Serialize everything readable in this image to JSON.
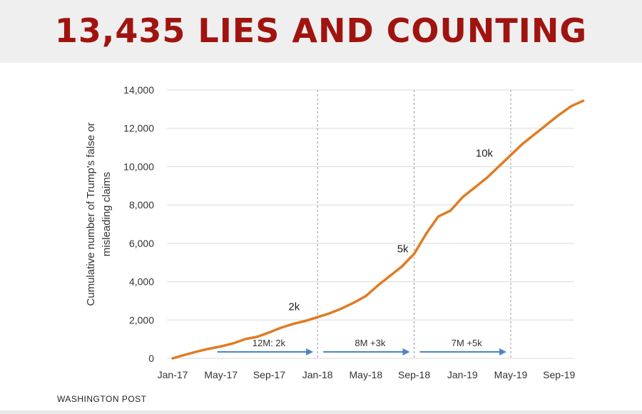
{
  "headline": "13,435 LIES AND COUNTING",
  "source": "WASHINGTON POST",
  "colors": {
    "headline": "#a0140f",
    "line": "#e07b24",
    "arrow": "#4a86c5",
    "grid": "#d9d9d9"
  },
  "chart_data": {
    "type": "line",
    "title": "",
    "ylabel": "Cumulative number of Trump's false or misleading claims",
    "ylabel_lines": [
      "Cumulative number of Trump's false or",
      "misleading claims"
    ],
    "ylim": [
      0,
      14000
    ],
    "yticks": [
      0,
      2000,
      4000,
      6000,
      8000,
      10000,
      12000,
      14000
    ],
    "ytick_labels": [
      "0",
      "2,000",
      "4,000",
      "6,000",
      "8,000",
      "10,000",
      "12,000",
      "14,000"
    ],
    "xlim": [
      "2017-01",
      "2019-12"
    ],
    "xticks": [
      "2017-01",
      "2017-05",
      "2017-09",
      "2018-01",
      "2018-05",
      "2018-09",
      "2019-01",
      "2019-05",
      "2019-09"
    ],
    "xtick_labels": [
      "Jan-17",
      "May-17",
      "Sep-17",
      "Jan-18",
      "May-18",
      "Sep-18",
      "Jan-19",
      "May-19",
      "Sep-19"
    ],
    "grid": "horizontal",
    "series": [
      {
        "x": [
          "2017-01",
          "2017-02",
          "2017-03",
          "2017-04",
          "2017-05",
          "2017-06",
          "2017-07",
          "2017-08",
          "2017-09",
          "2017-10",
          "2017-11",
          "2017-12",
          "2018-01",
          "2018-02",
          "2018-03",
          "2018-04",
          "2018-05",
          "2018-06",
          "2018-07",
          "2018-08",
          "2018-09",
          "2018-10",
          "2018-11",
          "2018-12",
          "2019-01",
          "2019-02",
          "2019-03",
          "2019-04",
          "2019-05",
          "2019-06",
          "2019-07",
          "2019-08",
          "2019-09",
          "2019-10",
          "2019-11"
        ],
        "y": [
          0,
          180,
          350,
          500,
          620,
          780,
          1000,
          1120,
          1350,
          1600,
          1800,
          1950,
          2150,
          2350,
          2600,
          2900,
          3250,
          3800,
          4300,
          4800,
          5450,
          6500,
          7400,
          7700,
          8400,
          8900,
          9400,
          10000,
          10600,
          11200,
          11700,
          12200,
          12700,
          13150,
          13435
        ]
      }
    ],
    "vlines": [
      "2018-01",
      "2018-09",
      "2019-05"
    ],
    "annotations": [
      {
        "text": "2k",
        "x": "2017-12",
        "y": 2000
      },
      {
        "text": "5k",
        "x": "2018-09",
        "y": 5000
      },
      {
        "text": "10k",
        "x": "2019-04",
        "y": 10000
      }
    ],
    "arrows": [
      {
        "label": "12M: 2k",
        "from": "2017-05",
        "to": "2018-01"
      },
      {
        "label": "8M +3k",
        "from": "2018-01",
        "to": "2018-09"
      },
      {
        "label": "7M +5k",
        "from": "2018-09",
        "to": "2019-05"
      }
    ]
  }
}
